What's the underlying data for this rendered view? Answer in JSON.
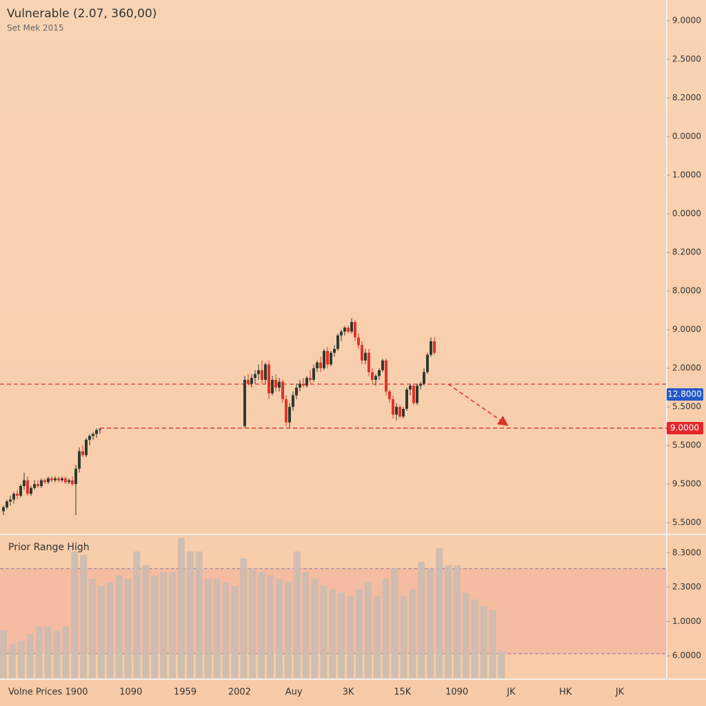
{
  "chart_data": [
    {
      "type": "candlestick",
      "title": "Vulnerable (2.07, 360,00)",
      "subtitle": "Set Mek 2015",
      "x": [
        1,
        2,
        3,
        4,
        5,
        6,
        7,
        8,
        9,
        10,
        11,
        12,
        13,
        14,
        15,
        16,
        17,
        18,
        19,
        20,
        21,
        22,
        23,
        24,
        25,
        26,
        27,
        28,
        29,
        71,
        72,
        73,
        74,
        75,
        76,
        77,
        78,
        79,
        80,
        81,
        82,
        83,
        84,
        85,
        86,
        87,
        88,
        89,
        90,
        91,
        92,
        93,
        94,
        95,
        96,
        97,
        98,
        99,
        100,
        101,
        102,
        103,
        104,
        105,
        106,
        107,
        108,
        109,
        110,
        111,
        112,
        113,
        114,
        115,
        116,
        117,
        118,
        119,
        120,
        121,
        122,
        123,
        124,
        125,
        126
      ],
      "open": [
        0.3,
        0.4,
        0.55,
        0.6,
        0.75,
        0.7,
        0.95,
        1.1,
        0.75,
        0.9,
        1.0,
        0.95,
        1.1,
        1.05,
        1.15,
        1.1,
        1.15,
        1.1,
        1.15,
        1.05,
        1.1,
        1.0,
        1.4,
        1.85,
        1.75,
        2.15,
        2.25,
        2.3,
        2.4,
        2.5,
        3.7,
        3.6,
        3.75,
        3.85,
        3.95,
        3.7,
        4.1,
        3.35,
        3.7,
        3.5,
        3.65,
        3.2,
        2.6,
        3.0,
        3.3,
        3.5,
        3.6,
        3.55,
        3.75,
        3.7,
        4.0,
        4.15,
        4.0,
        4.45,
        4.1,
        4.4,
        4.5,
        4.85,
        4.95,
        5.05,
        4.95,
        5.2,
        4.8,
        4.6,
        4.2,
        4.4,
        3.9,
        3.7,
        3.8,
        3.95,
        4.2,
        3.4,
        3.2,
        2.8,
        3.0,
        2.75,
        2.95,
        3.45,
        3.55,
        3.1,
        3.55,
        3.6,
        3.9,
        4.35,
        4.7
      ],
      "high": [
        0.45,
        0.6,
        0.7,
        0.8,
        0.85,
        1.0,
        1.3,
        1.2,
        0.95,
        1.1,
        1.1,
        1.15,
        1.15,
        1.2,
        1.2,
        1.2,
        1.2,
        1.2,
        1.2,
        1.15,
        1.2,
        1.5,
        1.95,
        2.0,
        2.2,
        2.3,
        2.35,
        2.45,
        2.45,
        3.8,
        3.85,
        3.85,
        3.95,
        4.1,
        4.2,
        4.15,
        4.2,
        3.8,
        3.85,
        3.75,
        3.7,
        3.3,
        3.1,
        3.4,
        3.6,
        3.7,
        3.75,
        3.8,
        3.95,
        4.1,
        4.2,
        4.3,
        4.5,
        4.55,
        4.45,
        4.6,
        4.9,
        5.0,
        5.1,
        5.1,
        5.3,
        5.25,
        4.9,
        4.7,
        4.5,
        4.5,
        4.0,
        3.85,
        4.0,
        4.25,
        4.25,
        3.45,
        3.3,
        3.1,
        3.05,
        3.0,
        3.5,
        3.6,
        3.6,
        3.6,
        3.65,
        4.0,
        4.4,
        4.8,
        4.8
      ],
      "low": [
        0.2,
        0.35,
        0.45,
        0.5,
        0.6,
        0.65,
        0.85,
        0.7,
        0.7,
        0.85,
        0.9,
        0.9,
        1.0,
        1.0,
        1.05,
        1.05,
        1.05,
        1.05,
        1.0,
        1.0,
        0.95,
        0.2,
        1.3,
        1.7,
        1.7,
        2.0,
        2.15,
        2.2,
        2.3,
        2.46,
        3.55,
        3.5,
        3.6,
        3.7,
        3.6,
        3.6,
        3.2,
        3.3,
        3.4,
        3.4,
        3.1,
        2.5,
        2.46,
        2.9,
        3.2,
        3.4,
        3.5,
        3.5,
        3.6,
        3.65,
        3.9,
        3.9,
        3.95,
        4.0,
        4.05,
        4.3,
        4.45,
        4.7,
        4.85,
        4.9,
        4.9,
        4.7,
        4.5,
        4.1,
        4.1,
        3.8,
        3.6,
        3.55,
        3.7,
        3.9,
        3.3,
        3.1,
        2.7,
        2.65,
        2.7,
        2.7,
        2.9,
        3.3,
        3.05,
        3.05,
        3.45,
        3.55,
        3.85,
        4.3,
        4.35
      ],
      "close": [
        0.4,
        0.55,
        0.6,
        0.75,
        0.7,
        0.95,
        1.1,
        0.75,
        0.9,
        1.0,
        0.95,
        1.1,
        1.05,
        1.15,
        1.1,
        1.15,
        1.1,
        1.15,
        1.05,
        1.1,
        1.0,
        1.4,
        1.85,
        1.75,
        2.15,
        2.25,
        2.3,
        2.4,
        2.42,
        3.7,
        3.6,
        3.75,
        3.85,
        3.95,
        3.7,
        4.1,
        3.35,
        3.7,
        3.5,
        3.65,
        3.2,
        2.6,
        3.0,
        3.3,
        3.5,
        3.6,
        3.55,
        3.75,
        3.7,
        4.0,
        4.15,
        4.0,
        4.45,
        4.1,
        4.4,
        4.5,
        4.85,
        4.95,
        5.05,
        4.95,
        5.2,
        4.8,
        4.6,
        4.2,
        4.4,
        3.9,
        3.7,
        3.8,
        3.95,
        4.2,
        3.4,
        3.2,
        2.8,
        3.0,
        2.75,
        2.95,
        3.45,
        3.55,
        3.1,
        3.55,
        3.6,
        3.9,
        4.35,
        4.7,
        4.4
      ],
      "up_color": "#2f3a2c",
      "down_color": "#e0332b",
      "xlim": [
        0,
        193
      ],
      "ylim": [
        -0.3,
        13.5
      ],
      "yticks": [
        {
          "value": 13,
          "label": "9.0000"
        },
        {
          "value": 12,
          "label": "2.5000"
        },
        {
          "value": 11,
          "label": "8.2000"
        },
        {
          "value": 10,
          "label": "0.0000"
        },
        {
          "value": 9,
          "label": "1.0000"
        },
        {
          "value": 8,
          "label": "0.0000"
        },
        {
          "value": 7,
          "label": "8.2000"
        },
        {
          "value": 6,
          "label": "8.0000"
        },
        {
          "value": 5,
          "label": "9.0000"
        },
        {
          "value": 4,
          "label": "2.0000"
        },
        {
          "value": 3,
          "label": "5.5000"
        },
        {
          "value": 2,
          "label": "5.5000"
        },
        {
          "value": 1,
          "label": "9.5000"
        },
        {
          "value": 0,
          "label": "5.5000"
        }
      ],
      "levels": [
        {
          "value": 3.59,
          "label": "12.8000",
          "color": "#2457c8"
        },
        {
          "value": 2.45,
          "label": "9.0000",
          "color": "#e3262b"
        }
      ]
    },
    {
      "type": "bar",
      "title": "Prior Range High",
      "values": [
        0.74,
        0.34,
        0.44,
        0.64,
        0.84,
        0.84,
        0.74,
        0.84,
        3.04,
        2.94,
        2.24,
        2.04,
        2.14,
        2.34,
        2.24,
        3.04,
        2.64,
        2.34,
        2.44,
        2.44,
        3.44,
        3.04,
        3.04,
        2.24,
        2.24,
        2.14,
        2.04,
        2.84,
        2.54,
        2.44,
        2.34,
        2.24,
        2.14,
        3.04,
        2.44,
        2.24,
        2.04,
        1.94,
        1.84,
        1.74,
        1.94,
        2.14,
        1.74,
        2.24,
        2.54,
        1.74,
        1.94,
        2.74,
        2.54,
        3.14,
        2.64,
        2.64,
        1.84,
        1.64,
        1.44,
        1.34,
        0.14
      ],
      "color": "#c9bcb0",
      "band": [
        0.06,
        2.54
      ],
      "band_color": "#f2a89a",
      "ylim": [
        -0.66,
        3.5
      ],
      "yticks": [
        {
          "value": 3,
          "label": "8.3000"
        },
        {
          "value": 2,
          "label": "2.3000"
        },
        {
          "value": 1,
          "label": "1.0000"
        },
        {
          "value": 0,
          "label": "6.0000"
        }
      ],
      "x_axis_title": "Volne Prices",
      "x_axis_labels": [
        "1900",
        "1090",
        "1959",
        "2002",
        "Auy",
        "3K",
        "15K",
        "1090",
        "JK",
        "HK",
        "JK"
      ]
    }
  ]
}
